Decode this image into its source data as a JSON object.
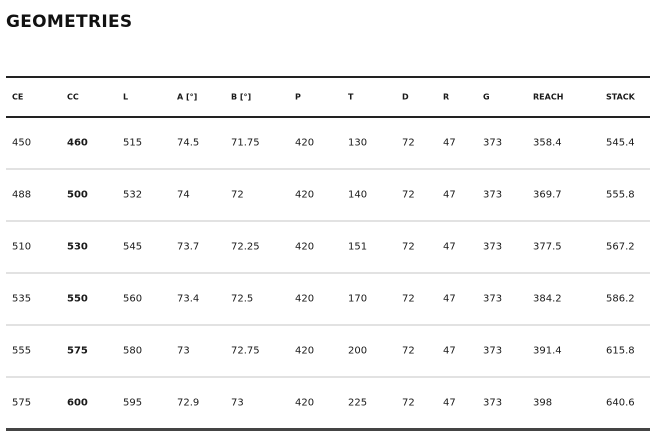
{
  "title": "GEOMETRIES",
  "table": {
    "headers": [
      "CE",
      "CC",
      "L",
      "A [°]",
      "B [°]",
      "P",
      "T",
      "D",
      "R",
      "G",
      "REACH",
      "STACK"
    ],
    "rows": [
      [
        "450",
        "460",
        "515",
        "74.5",
        "71.75",
        "420",
        "130",
        "72",
        "47",
        "373",
        "358.4",
        "545.4"
      ],
      [
        "488",
        "500",
        "532",
        "74",
        "72",
        "420",
        "140",
        "72",
        "47",
        "373",
        "369.7",
        "555.8"
      ],
      [
        "510",
        "530",
        "545",
        "73.7",
        "72.25",
        "420",
        "151",
        "72",
        "47",
        "373",
        "377.5",
        "567.2"
      ],
      [
        "535",
        "550",
        "560",
        "73.4",
        "72.5",
        "420",
        "170",
        "72",
        "47",
        "373",
        "384.2",
        "586.2"
      ],
      [
        "555",
        "575",
        "580",
        "73",
        "72.75",
        "420",
        "200",
        "72",
        "47",
        "373",
        "391.4",
        "615.8"
      ],
      [
        "575",
        "600",
        "595",
        "72.9",
        "73",
        "420",
        "225",
        "72",
        "47",
        "373",
        "398",
        "640.6"
      ]
    ]
  }
}
